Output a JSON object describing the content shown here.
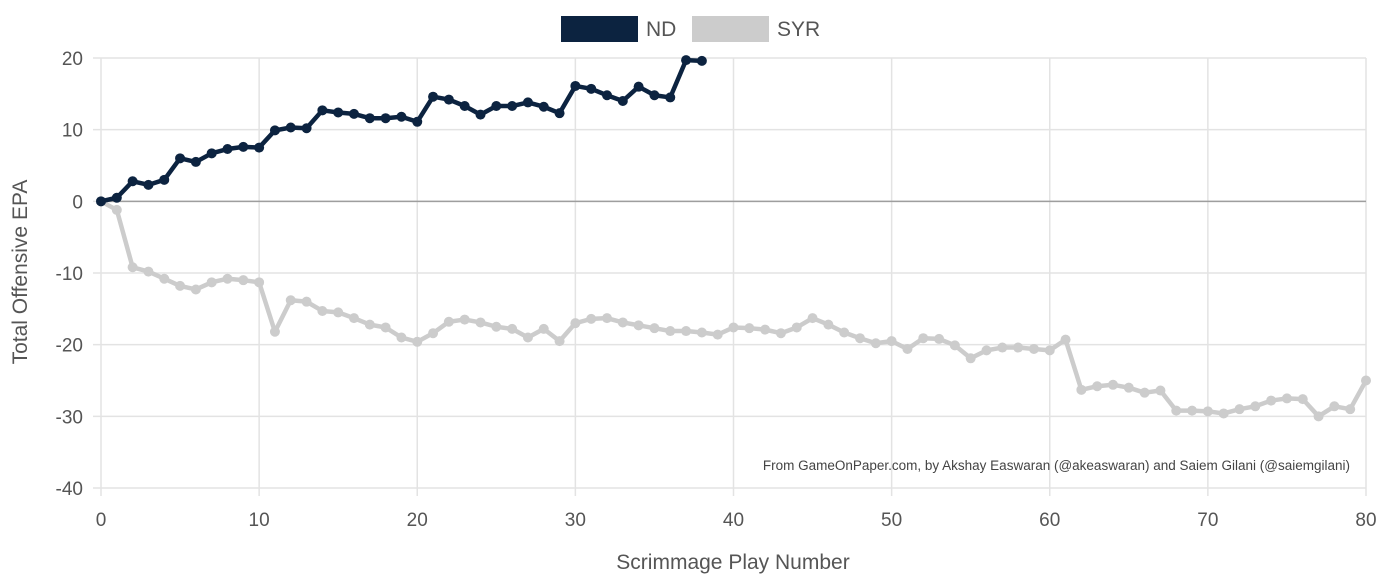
{
  "chart_data": {
    "type": "line",
    "xlabel": "Scrimmage Play Number",
    "ylabel": "Total Offensive EPA",
    "xlim": [
      0,
      80
    ],
    "ylim": [
      -40,
      20
    ],
    "x_ticks": [
      0,
      10,
      20,
      30,
      40,
      50,
      60,
      70,
      80
    ],
    "y_ticks": [
      20,
      10,
      0,
      -10,
      -20,
      -30,
      -40
    ],
    "x_tick_labels": [
      "0",
      "10",
      "20",
      "30",
      "40",
      "50",
      "60",
      "70",
      "80"
    ],
    "y_tick_labels": [
      "20",
      "10",
      "0",
      "-10",
      "-20",
      "-30",
      "-40"
    ],
    "grid": true,
    "legend_position": "top-center",
    "credit": "From GameOnPaper.com, by Akshay Easwaran (@akeaswaran) and Saiem Gilani (@saiemgilani)",
    "series": [
      {
        "name": "ND",
        "color": "#0c2340",
        "values": [
          0,
          0.5,
          2.8,
          2.3,
          3.0,
          6.0,
          5.5,
          6.7,
          7.3,
          7.6,
          7.5,
          9.9,
          10.3,
          10.2,
          12.7,
          12.4,
          12.2,
          11.6,
          11.6,
          11.8,
          11.1,
          14.6,
          14.2,
          13.3,
          12.1,
          13.3,
          13.3,
          13.8,
          13.2,
          12.3,
          16.1,
          15.7,
          14.8,
          14.0,
          16.0,
          14.8,
          14.5,
          19.7,
          19.6
        ]
      },
      {
        "name": "SYR",
        "color": "#cccccc",
        "values": [
          0,
          -1.2,
          -9.2,
          -9.8,
          -10.8,
          -11.8,
          -12.3,
          -11.3,
          -10.8,
          -11.0,
          -11.3,
          -18.2,
          -13.8,
          -14.0,
          -15.3,
          -15.5,
          -16.3,
          -17.2,
          -17.6,
          -19.0,
          -19.6,
          -18.4,
          -16.8,
          -16.5,
          -16.9,
          -17.5,
          -17.8,
          -19.0,
          -17.8,
          -19.5,
          -17.0,
          -16.4,
          -16.3,
          -16.9,
          -17.3,
          -17.7,
          -18.1,
          -18.1,
          -18.3,
          -18.6,
          -17.6,
          -17.7,
          -17.9,
          -18.4,
          -17.6,
          -16.3,
          -17.2,
          -18.3,
          -19.1,
          -19.8,
          -19.5,
          -20.6,
          -19.1,
          -19.2,
          -20.1,
          -21.9,
          -20.8,
          -20.4,
          -20.4,
          -20.6,
          -20.8,
          -19.3,
          -26.3,
          -25.8,
          -25.6,
          -26.0,
          -26.7,
          -26.4,
          -29.2,
          -29.2,
          -29.3,
          -29.6,
          -29.0,
          -28.6,
          -27.8,
          -27.5,
          -27.6,
          -30.0,
          -28.6,
          -29.0,
          -25.0
        ]
      }
    ]
  }
}
